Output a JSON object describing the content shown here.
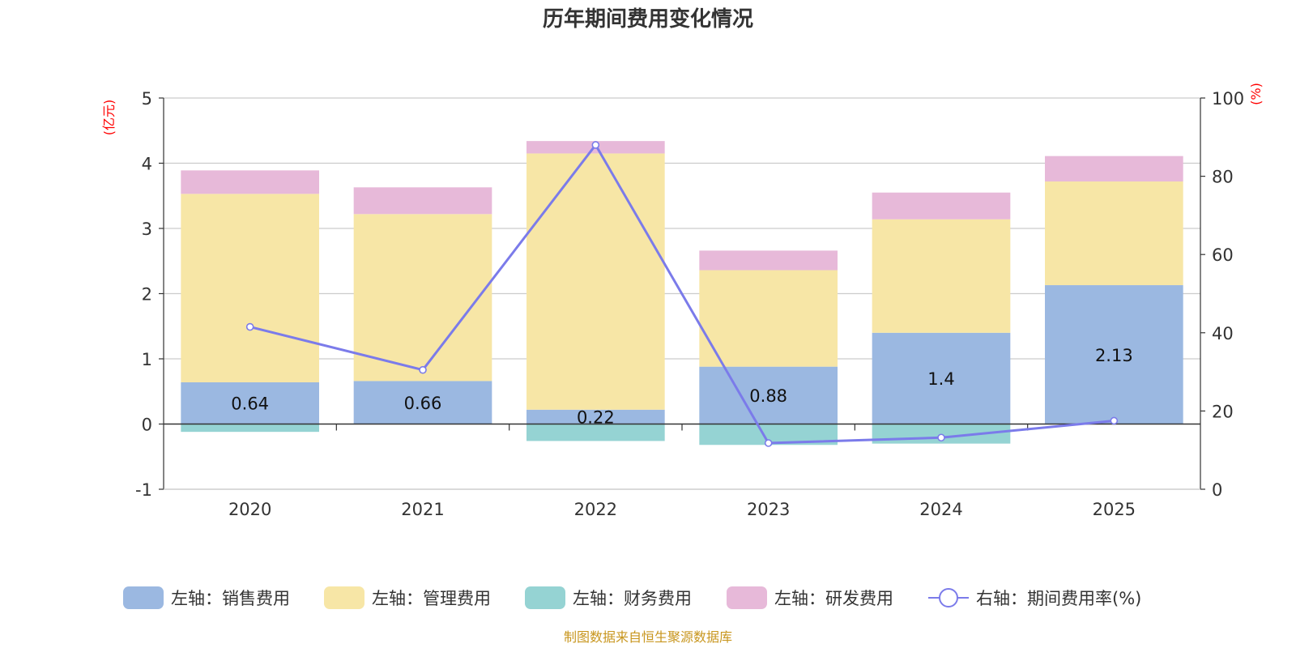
{
  "chart_data": {
    "type": "bar",
    "title": "历年期间费用变化情况",
    "categories": [
      "2020",
      "2021",
      "2022",
      "2023",
      "2024",
      "2025"
    ],
    "left_axis": {
      "unit": "(亿元)",
      "ylim": [
        -1,
        5
      ],
      "ticks": [
        "-1",
        "0",
        "1",
        "2",
        "3",
        "4",
        "5"
      ]
    },
    "right_axis": {
      "unit": "(%)",
      "ylim": [
        0,
        100
      ],
      "ticks": [
        "0",
        "20",
        "40",
        "60",
        "80",
        "100"
      ]
    },
    "series": [
      {
        "name": "左轴：销售费用",
        "axis": "left",
        "type": "bar",
        "color": "#9bb8e1",
        "values": [
          0.64,
          0.66,
          0.22,
          0.88,
          1.4,
          2.13
        ],
        "labels": [
          "0.64",
          "0.66",
          "0.22",
          "0.88",
          "1.4",
          "2.13"
        ]
      },
      {
        "name": "左轴：管理费用",
        "axis": "left",
        "type": "bar",
        "color": "#f7e6a6",
        "values": [
          2.89,
          2.56,
          3.93,
          1.48,
          1.74,
          1.59
        ]
      },
      {
        "name": "左轴：财务费用",
        "axis": "left",
        "type": "bar",
        "color": "#95d3d3",
        "values": [
          -0.12,
          0.0,
          -0.26,
          -0.32,
          -0.3,
          0.0
        ]
      },
      {
        "name": "左轴：研发费用",
        "axis": "left",
        "type": "bar",
        "color": "#e7b9d9",
        "values": [
          0.36,
          0.41,
          0.19,
          0.3,
          0.41,
          0.39
        ]
      },
      {
        "name": "右轴：期间费用率(%)",
        "axis": "right",
        "type": "line",
        "color": "#7b7bea",
        "values": [
          41.5,
          30.5,
          88.0,
          11.8,
          13.2,
          17.5
        ]
      }
    ],
    "legend_position": "bottom",
    "grid": true
  },
  "source": "制图数据来自恒生聚源数据库"
}
